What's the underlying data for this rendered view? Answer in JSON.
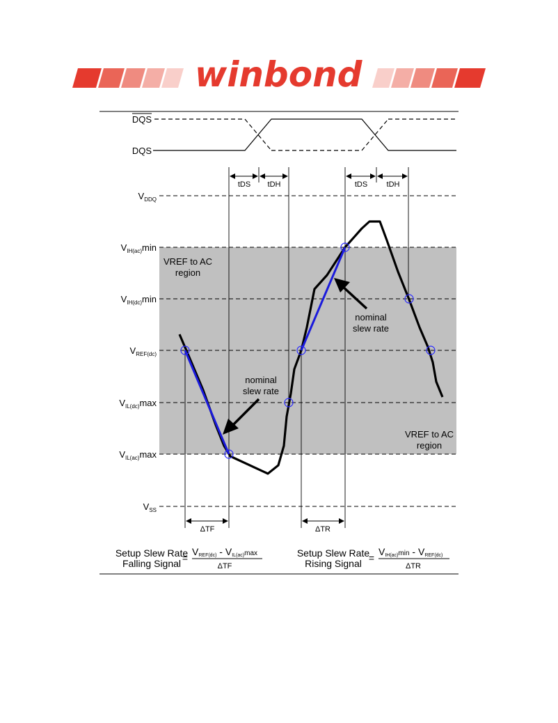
{
  "logo": {
    "text": "winbond",
    "brand_color": "#e53a2e"
  },
  "signals": {
    "dqs_bar": "DQS",
    "dqs": "DQS"
  },
  "timing": {
    "t_ds": "tDS",
    "t_dh": "tDH"
  },
  "levels": {
    "vddq": {
      "main": "V",
      "sub": "DDQ",
      "suffix": ""
    },
    "vih_ac": {
      "main": "V",
      "sub": "IH(ac)",
      "suffix": "min"
    },
    "vih_dc": {
      "main": "V",
      "sub": "IH(dc)",
      "suffix": "min"
    },
    "vref": {
      "main": "V",
      "sub": "REF(dc)",
      "suffix": ""
    },
    "vil_dc": {
      "main": "V",
      "sub": "IL(dc)",
      "suffix": "max"
    },
    "vil_ac": {
      "main": "V",
      "sub": "IL(ac)",
      "suffix": "max"
    },
    "vss": {
      "main": "V",
      "sub": "SS",
      "suffix": ""
    }
  },
  "regions": {
    "upper": {
      "line1": "VREF to AC",
      "line2": "region"
    },
    "lower": {
      "line1": "VREF to AC",
      "line2": "region"
    }
  },
  "annotations": {
    "nominal_left": {
      "line1": "nominal",
      "line2": "slew rate"
    },
    "nominal_right": {
      "line1": "nominal",
      "line2": "slew rate"
    }
  },
  "deltas": {
    "tf": "ΔTF",
    "tr": "ΔTR"
  },
  "formulas": {
    "falling": {
      "line1": "Setup Slew Rate",
      "line2": "Falling Signal",
      "eq": "=",
      "num_a": "V",
      "num_a_sub": "REF(dc)",
      "minus": " - ",
      "num_b": "V",
      "num_b_sub": "IL(ac)",
      "num_b_suffix": "max",
      "den": "ΔTF"
    },
    "rising": {
      "line1": "Setup Slew Rate",
      "line2": "Rising Signal",
      "eq": "=",
      "num_a": "V",
      "num_a_sub": "IH(ac)",
      "num_a_suffix": "min",
      "minus": " - ",
      "num_b": "V",
      "num_b_sub": "REF(dc)",
      "den": "ΔTR"
    }
  },
  "colors": {
    "waveform": "#000000",
    "slew_line": "#1a1adc",
    "region_fill": "#c0c0c0",
    "marker": "#2a2aff"
  }
}
